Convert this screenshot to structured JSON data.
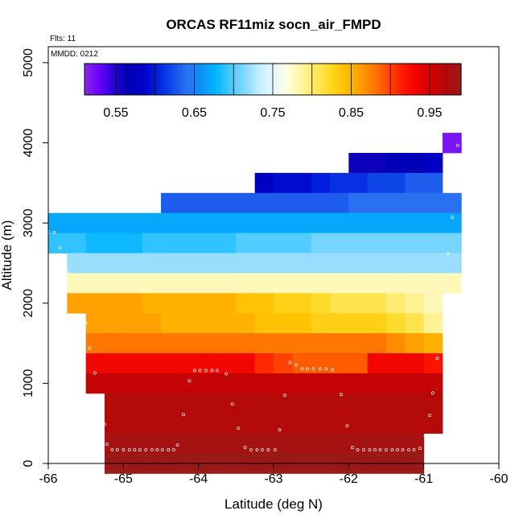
{
  "chart_data": {
    "type": "heatmap",
    "title": "ORCAS RF11miz socn_air_FMPD",
    "xlabel": "Latitude (deg N)",
    "ylabel": "Altitude (m)",
    "xlim": [
      -66,
      -60
    ],
    "ylim": [
      0,
      5200
    ],
    "x_ticks": [
      -66,
      -65,
      -64,
      -63,
      -62,
      -61,
      -60
    ],
    "x_tick_labels": [
      "-66",
      "-65",
      "-64",
      "-63",
      "-62",
      "-61",
      "-60"
    ],
    "y_ticks": [
      0,
      1000,
      2000,
      3000,
      4000,
      5000
    ],
    "y_tick_labels": [
      "0",
      "1000",
      "2000",
      "3000",
      "4000",
      "5000"
    ],
    "flights_label": "Flts: 11",
    "date_label": "MMDD: 0212",
    "colorbar": {
      "range": [
        0.51,
        0.99
      ],
      "ticks": [
        0.55,
        0.65,
        0.75,
        0.85,
        0.95
      ],
      "tick_labels": [
        "0.55",
        "0.65",
        "0.75",
        "0.85",
        "0.95"
      ],
      "colors": [
        "#8a2be2",
        "#6a00ff",
        "#2800d4",
        "#0000b0",
        "#0000c8",
        "#0020e0",
        "#1048e8",
        "#2a70f0",
        "#1090f8",
        "#00b4ff",
        "#40c8ff",
        "#80d8ff",
        "#c0ecff",
        "#e8f8ff",
        "#ffffe0",
        "#fff4a0",
        "#ffe860",
        "#ffd820",
        "#ffc000",
        "#ffa000",
        "#ff7800",
        "#ff4800",
        "#ff1800",
        "#ee0000",
        "#d00000",
        "#b00a0a",
        "#9a1a1a"
      ]
    },
    "grid": false,
    "layers": [
      {
        "alt": [
          3875,
          4125
        ],
        "x0": -60.75,
        "values": [
          0.52
        ]
      },
      {
        "alt": [
          3625,
          3875
        ],
        "x0": -62.0,
        "values": [
          0.56,
          0.56,
          0.57,
          0.57,
          0.58
        ]
      },
      {
        "alt": [
          3375,
          3625
        ],
        "x0": -63.25,
        "values": [
          0.58,
          0.59,
          0.59,
          0.6,
          0.61,
          0.61,
          0.62,
          0.62,
          0.63,
          0.63
        ]
      },
      {
        "alt": [
          3125,
          3375
        ],
        "x0": -64.5,
        "values": [
          0.63,
          0.63,
          0.63,
          0.63,
          0.63,
          0.63,
          0.63,
          0.63,
          0.63,
          0.63,
          0.64,
          0.64,
          0.64,
          0.64,
          0.64,
          0.64
        ]
      },
      {
        "alt": [
          2875,
          3125
        ],
        "x0": -66.0,
        "values": [
          0.67,
          0.67,
          0.67,
          0.67,
          0.67,
          0.67,
          0.67,
          0.67,
          0.67,
          0.67,
          0.67,
          0.67,
          0.67,
          0.67,
          0.67,
          0.67,
          0.67,
          0.67,
          0.67,
          0.67,
          0.67,
          0.67
        ]
      },
      {
        "alt": [
          2625,
          2875
        ],
        "x0": -66.0,
        "values": [
          0.69,
          0.69,
          0.68,
          0.68,
          0.68,
          0.69,
          0.69,
          0.69,
          0.69,
          0.69,
          0.7,
          0.7,
          0.7,
          0.7,
          0.71,
          0.71,
          0.71,
          0.71,
          0.71,
          0.71,
          0.71,
          0.71
        ]
      },
      {
        "alt": [
          2375,
          2625
        ],
        "x0": -65.75,
        "values": [
          0.72,
          0.72,
          0.72,
          0.72,
          0.72,
          0.72,
          0.72,
          0.72,
          0.72,
          0.72,
          0.72,
          0.72,
          0.72,
          0.72,
          0.72,
          0.72,
          0.72,
          0.72,
          0.72,
          0.72,
          0.72
        ]
      },
      {
        "alt": [
          2125,
          2375
        ],
        "x0": -65.75,
        "values": [
          0.78,
          0.78,
          0.78,
          0.78,
          0.78,
          0.78,
          0.78,
          0.78,
          0.78,
          0.78,
          0.78,
          0.78,
          0.78,
          0.78,
          0.78,
          0.78,
          0.78,
          0.78,
          0.78,
          0.78,
          0.78
        ]
      },
      {
        "alt": [
          1875,
          2125
        ],
        "x0": -65.75,
        "values": [
          0.86,
          0.86,
          0.86,
          0.86,
          0.85,
          0.85,
          0.85,
          0.85,
          0.85,
          0.84,
          0.84,
          0.83,
          0.83,
          0.82,
          0.81,
          0.81,
          0.81,
          0.8,
          0.79,
          0.78
        ]
      },
      {
        "alt": [
          1625,
          1875
        ],
        "x0": -65.5,
        "values": [
          0.86,
          0.86,
          0.86,
          0.86,
          0.85,
          0.85,
          0.85,
          0.85,
          0.85,
          0.84,
          0.84,
          0.84,
          0.83,
          0.83,
          0.83,
          0.83,
          0.82,
          0.81,
          0.79
        ]
      },
      {
        "alt": [
          1375,
          1625
        ],
        "x0": -65.5,
        "values": [
          0.88,
          0.88,
          0.88,
          0.88,
          0.88,
          0.88,
          0.88,
          0.88,
          0.88,
          0.88,
          0.88,
          0.88,
          0.88,
          0.88,
          0.88,
          0.88,
          0.87,
          0.86,
          0.85
        ]
      },
      {
        "alt": [
          1125,
          1375
        ],
        "x0": -65.5,
        "values": [
          0.93,
          0.93,
          0.93,
          0.93,
          0.93,
          0.93,
          0.93,
          0.93,
          0.93,
          0.91,
          0.9,
          0.89,
          0.89,
          0.89,
          0.89,
          0.93,
          0.93,
          0.93,
          0.92
        ]
      },
      {
        "alt": [
          875,
          1125
        ],
        "x0": -65.5,
        "values": [
          0.96,
          0.96,
          0.96,
          0.96,
          0.96,
          0.96,
          0.96,
          0.96,
          0.96,
          0.96,
          0.96,
          0.96,
          0.96,
          0.96,
          0.96,
          0.96,
          0.96,
          0.96,
          0.96
        ]
      },
      {
        "alt": [
          625,
          875
        ],
        "x0": -65.25,
        "values": [
          0.97,
          0.97,
          0.97,
          0.97,
          0.97,
          0.97,
          0.97,
          0.97,
          0.97,
          0.97,
          0.97,
          0.97,
          0.97,
          0.97,
          0.97,
          0.97,
          0.97,
          0.97
        ]
      },
      {
        "alt": [
          375,
          625
        ],
        "x0": -65.25,
        "values": [
          0.97,
          0.97,
          0.97,
          0.97,
          0.97,
          0.97,
          0.97,
          0.97,
          0.97,
          0.97,
          0.97,
          0.97,
          0.97,
          0.97,
          0.97,
          0.97,
          0.97,
          0.97
        ]
      },
      {
        "alt": [
          125,
          375
        ],
        "x0": -65.25,
        "values": [
          0.98,
          0.98,
          0.98,
          0.98,
          0.98,
          0.98,
          0.98,
          0.98,
          0.98,
          0.98,
          0.98,
          0.98,
          0.98,
          0.98,
          0.98,
          0.98,
          0.98
        ]
      },
      {
        "alt": [
          -125,
          125
        ],
        "x0": -65.25,
        "values": [
          0.99,
          0.99,
          0.99,
          0.99,
          0.99,
          0.99,
          0.99,
          0.99,
          0.99,
          0.99,
          0.99,
          0.99,
          0.99,
          0.99,
          0.99,
          0.99,
          0.99
        ]
      }
    ],
    "flight_track": [
      [
        -65.15,
        170
      ],
      [
        -65.08,
        170
      ],
      [
        -65.0,
        170
      ],
      [
        -64.92,
        170
      ],
      [
        -64.85,
        170
      ],
      [
        -64.78,
        170
      ],
      [
        -64.7,
        170
      ],
      [
        -64.62,
        170
      ],
      [
        -64.55,
        170
      ],
      [
        -64.48,
        170
      ],
      [
        -64.4,
        170
      ],
      [
        -64.33,
        170
      ],
      [
        -64.28,
        230
      ],
      [
        -64.2,
        610
      ],
      [
        -64.12,
        1030
      ],
      [
        -64.05,
        1160
      ],
      [
        -63.98,
        1160
      ],
      [
        -63.9,
        1160
      ],
      [
        -63.82,
        1160
      ],
      [
        -63.75,
        1160
      ],
      [
        -63.63,
        1120
      ],
      [
        -63.55,
        740
      ],
      [
        -63.47,
        440
      ],
      [
        -63.38,
        200
      ],
      [
        -63.3,
        170
      ],
      [
        -63.22,
        170
      ],
      [
        -63.15,
        170
      ],
      [
        -63.07,
        170
      ],
      [
        -62.98,
        170
      ],
      [
        -62.92,
        420
      ],
      [
        -62.85,
        850
      ],
      [
        -62.78,
        1260
      ],
      [
        -62.7,
        1230
      ],
      [
        -62.62,
        1180
      ],
      [
        -62.55,
        1180
      ],
      [
        -62.47,
        1180
      ],
      [
        -62.38,
        1180
      ],
      [
        -62.3,
        1180
      ],
      [
        -62.22,
        1170
      ],
      [
        -62.1,
        860
      ],
      [
        -62.02,
        470
      ],
      [
        -61.95,
        200
      ],
      [
        -61.88,
        170
      ],
      [
        -61.8,
        170
      ],
      [
        -61.72,
        170
      ],
      [
        -61.65,
        170
      ],
      [
        -61.58,
        170
      ],
      [
        -61.5,
        170
      ],
      [
        -61.42,
        170
      ],
      [
        -61.35,
        170
      ],
      [
        -61.28,
        170
      ],
      [
        -61.2,
        170
      ],
      [
        -61.13,
        170
      ],
      [
        -61.05,
        190
      ],
      [
        -60.98,
        340
      ],
      [
        -60.92,
        600
      ],
      [
        -60.88,
        880
      ],
      [
        -60.82,
        1310
      ],
      [
        -60.78,
        1750
      ],
      [
        -60.72,
        2180
      ],
      [
        -60.68,
        2620
      ],
      [
        -60.62,
        3070
      ],
      [
        -60.58,
        3510
      ],
      [
        -60.55,
        3970
      ],
      [
        -65.5,
        1750
      ],
      [
        -65.45,
        1440
      ],
      [
        -65.38,
        1130
      ],
      [
        -65.3,
        820
      ],
      [
        -65.25,
        490
      ],
      [
        -65.22,
        240
      ],
      [
        -65.75,
        2390
      ],
      [
        -65.85,
        2690
      ],
      [
        -65.92,
        2880
      ],
      [
        -66.0,
        2890
      ]
    ]
  }
}
